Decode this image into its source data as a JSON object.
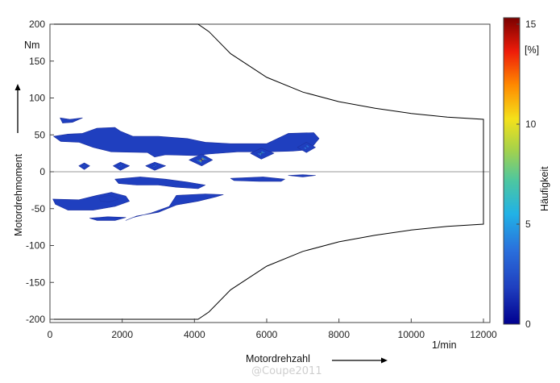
{
  "chart_data": {
    "type": "heatmap",
    "title": "",
    "xlabel": "Motordrehzahl",
    "xunit": "1/min",
    "ylabel": "Motordrehmoment",
    "yunit": "Nm",
    "xlim": [
      0,
      12000
    ],
    "ylim": [
      -200,
      200
    ],
    "xticks": [
      0,
      2000,
      4000,
      6000,
      8000,
      10000,
      12000
    ],
    "yticks": [
      -200,
      -150,
      -100,
      -50,
      0,
      50,
      100,
      150,
      200
    ],
    "grid": false,
    "colorbar": {
      "label": "Häufigkeit",
      "unit": "[%]",
      "range": [
        0,
        15
      ],
      "ticks": [
        0,
        5,
        10,
        15
      ]
    },
    "envelope": {
      "upper": [
        [
          0,
          200
        ],
        [
          4100,
          200
        ],
        [
          4400,
          190
        ],
        [
          5000,
          160
        ],
        [
          6000,
          128
        ],
        [
          7000,
          108
        ],
        [
          8000,
          95
        ],
        [
          9000,
          86
        ],
        [
          10000,
          79
        ],
        [
          11000,
          74
        ],
        [
          12000,
          71
        ]
      ],
      "lower": [
        [
          0,
          -200
        ],
        [
          4100,
          -200
        ],
        [
          4400,
          -190
        ],
        [
          5000,
          -160
        ],
        [
          6000,
          -128
        ],
        [
          7000,
          -108
        ],
        [
          8000,
          -95
        ],
        [
          9000,
          -86
        ],
        [
          10000,
          -79
        ],
        [
          11000,
          -74
        ],
        [
          12000,
          -71
        ]
      ]
    },
    "regions": [
      {
        "level": 1,
        "points": [
          [
            280,
            73
          ],
          [
            550,
            71
          ],
          [
            900,
            73
          ],
          [
            620,
            67
          ],
          [
            350,
            66
          ]
        ]
      },
      {
        "level": 1,
        "points": [
          [
            100,
            48
          ],
          [
            500,
            51
          ],
          [
            900,
            52
          ],
          [
            1300,
            59
          ],
          [
            1800,
            60
          ],
          [
            1950,
            55
          ],
          [
            2300,
            48
          ],
          [
            3000,
            48
          ],
          [
            3800,
            45
          ],
          [
            4300,
            40
          ],
          [
            5000,
            38
          ],
          [
            6000,
            38
          ],
          [
            6600,
            52
          ],
          [
            7300,
            53
          ],
          [
            7450,
            45
          ],
          [
            7200,
            30
          ],
          [
            6700,
            28
          ],
          [
            6000,
            27
          ],
          [
            5200,
            27
          ],
          [
            4400,
            24
          ],
          [
            4000,
            22
          ],
          [
            3200,
            23
          ],
          [
            2900,
            20
          ],
          [
            2700,
            26
          ],
          [
            1700,
            27
          ],
          [
            1200,
            33
          ],
          [
            800,
            40
          ],
          [
            300,
            41
          ]
        ]
      },
      {
        "level": 1,
        "points": [
          [
            800,
            8
          ],
          [
            950,
            12
          ],
          [
            1100,
            8
          ],
          [
            950,
            3
          ]
        ]
      },
      {
        "level": 1,
        "points": [
          [
            1750,
            8
          ],
          [
            1950,
            13
          ],
          [
            2200,
            8
          ],
          [
            1950,
            2
          ]
        ]
      },
      {
        "level": 1,
        "points": [
          [
            2650,
            8
          ],
          [
            2900,
            13
          ],
          [
            3200,
            8
          ],
          [
            2900,
            2
          ]
        ]
      },
      {
        "level": 1,
        "points": [
          [
            3850,
            16
          ],
          [
            4200,
            24
          ],
          [
            4500,
            16
          ],
          [
            4200,
            8
          ]
        ]
      },
      {
        "level": 1,
        "points": [
          [
            5550,
            25
          ],
          [
            5850,
            32
          ],
          [
            6200,
            25
          ],
          [
            5850,
            17
          ]
        ]
      },
      {
        "level": 1,
        "points": [
          [
            6850,
            33
          ],
          [
            7100,
            40
          ],
          [
            7350,
            33
          ],
          [
            7100,
            26
          ]
        ]
      },
      {
        "level": 1,
        "points": [
          [
            1800,
            -10
          ],
          [
            2500,
            -7
          ],
          [
            3200,
            -10
          ],
          [
            3800,
            -14
          ],
          [
            4300,
            -18
          ],
          [
            4100,
            -23
          ],
          [
            3500,
            -21
          ],
          [
            3000,
            -18
          ],
          [
            2400,
            -18
          ],
          [
            1900,
            -16
          ]
        ]
      },
      {
        "level": 1,
        "points": [
          [
            5000,
            -9
          ],
          [
            5900,
            -7
          ],
          [
            6500,
            -10
          ],
          [
            6400,
            -13
          ],
          [
            5800,
            -13
          ],
          [
            5100,
            -12
          ]
        ]
      },
      {
        "level": 1,
        "points": [
          [
            6600,
            -5
          ],
          [
            7000,
            -4
          ],
          [
            7350,
            -5
          ],
          [
            7000,
            -7
          ]
        ]
      },
      {
        "level": 1,
        "points": [
          [
            80,
            -37
          ],
          [
            800,
            -38
          ],
          [
            1300,
            -32
          ],
          [
            1700,
            -28
          ],
          [
            2100,
            -33
          ],
          [
            2200,
            -40
          ],
          [
            1800,
            -47
          ],
          [
            1200,
            -52
          ],
          [
            500,
            -52
          ],
          [
            150,
            -44
          ]
        ]
      },
      {
        "level": 1,
        "points": [
          [
            3500,
            -32
          ],
          [
            4300,
            -30
          ],
          [
            4800,
            -31
          ],
          [
            4600,
            -34
          ],
          [
            4100,
            -40
          ],
          [
            3500,
            -45
          ],
          [
            3000,
            -55
          ],
          [
            2400,
            -60
          ],
          [
            2100,
            -66
          ],
          [
            2300,
            -62
          ],
          [
            2800,
            -56
          ],
          [
            3300,
            -47
          ]
        ]
      },
      {
        "level": 1,
        "points": [
          [
            1100,
            -63
          ],
          [
            1600,
            -61
          ],
          [
            2100,
            -62
          ],
          [
            1800,
            -66
          ],
          [
            1300,
            -66
          ]
        ]
      },
      {
        "level": 2,
        "points": [
          [
            1350,
            -35
          ],
          [
            1650,
            -32
          ],
          [
            1900,
            -37
          ],
          [
            1650,
            -41
          ],
          [
            1400,
            -40
          ]
        ]
      },
      {
        "level": 4,
        "points": [
          [
            900,
            8
          ],
          [
            1000,
            8
          ],
          [
            950,
            10
          ],
          [
            950,
            6
          ]
        ]
      },
      {
        "level": 4,
        "points": [
          [
            1880,
            8
          ],
          [
            2020,
            8
          ],
          [
            1950,
            10
          ],
          [
            1950,
            6
          ]
        ]
      },
      {
        "level": 4,
        "points": [
          [
            2820,
            8
          ],
          [
            2980,
            8
          ],
          [
            2900,
            10
          ],
          [
            2900,
            6
          ]
        ]
      },
      {
        "level": 4,
        "points": [
          [
            4020,
            16
          ],
          [
            4380,
            16
          ],
          [
            4200,
            21
          ],
          [
            4200,
            11
          ]
        ]
      },
      {
        "level": 4,
        "points": [
          [
            5720,
            25
          ],
          [
            5980,
            25
          ],
          [
            5850,
            29
          ],
          [
            5850,
            21
          ]
        ]
      },
      {
        "level": 4,
        "points": [
          [
            7000,
            33
          ],
          [
            7200,
            33
          ],
          [
            7100,
            37
          ],
          [
            7100,
            30
          ]
        ]
      },
      {
        "level": 8,
        "points": [
          [
            4110,
            16
          ],
          [
            4290,
            16
          ],
          [
            4200,
            19
          ],
          [
            4200,
            13
          ]
        ]
      },
      {
        "level": 6,
        "points": [
          [
            5800,
            25
          ],
          [
            5900,
            25
          ],
          [
            5850,
            27
          ],
          [
            5850,
            23
          ]
        ]
      },
      {
        "level": 14,
        "points": [
          [
            4170,
            16
          ],
          [
            4230,
            16
          ],
          [
            4200,
            17.5
          ],
          [
            4200,
            14.5
          ]
        ]
      }
    ]
  },
  "watermark": "@Coupe2011",
  "colors": {
    "axis": "#444444",
    "envelope": "#000000",
    "zero_line": "#9a9a9a",
    "colormap": [
      "#00008f",
      "#1f3fbf",
      "#2a6fdc",
      "#21b2e6",
      "#4ec79f",
      "#a6d24a",
      "#f4e11a",
      "#ff8a00",
      "#ee1c0a",
      "#7a0000"
    ]
  }
}
